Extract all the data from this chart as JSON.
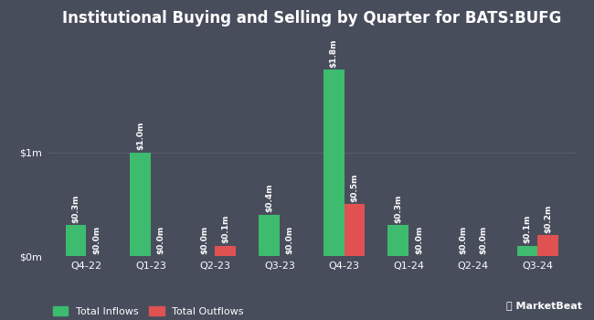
{
  "title": "Institutional Buying and Selling by Quarter for BATS:BUFG",
  "quarters": [
    "Q4-22",
    "Q1-23",
    "Q2-23",
    "Q3-23",
    "Q4-23",
    "Q1-24",
    "Q2-24",
    "Q3-24"
  ],
  "inflows": [
    0.3,
    1.0,
    0.0,
    0.4,
    1.8,
    0.3,
    0.0,
    0.1
  ],
  "outflows": [
    0.0,
    0.0,
    0.1,
    0.0,
    0.5,
    0.0,
    0.0,
    0.2
  ],
  "inflow_labels": [
    "$0.3m",
    "$1.0m",
    "$0.0m",
    "$0.4m",
    "$1.8m",
    "$0.3m",
    "$0.0m",
    "$0.1m"
  ],
  "outflow_labels": [
    "$0.0m",
    "$0.0m",
    "$0.1m",
    "$0.0m",
    "$0.5m",
    "$0.0m",
    "$0.0m",
    "$0.2m"
  ],
  "inflow_color": "#3dbb6e",
  "outflow_color": "#e05252",
  "background_color": "#484d5c",
  "plot_bg_color": "#484d5c",
  "text_color": "#ffffff",
  "grid_color": "#5a5f6e",
  "yticks": [
    0,
    1
  ],
  "ytick_labels": [
    "$0m",
    "$1m"
  ],
  "ylim": [
    0,
    2.1
  ],
  "legend_inflow": "Total Inflows",
  "legend_outflow": "Total Outflows",
  "title_fontsize": 12,
  "label_fontsize": 6.5,
  "axis_fontsize": 8,
  "bar_width": 0.32
}
